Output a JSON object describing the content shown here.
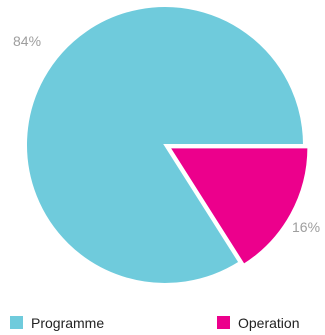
{
  "chart_data": {
    "type": "pie",
    "title": "",
    "slices": [
      {
        "label": "Programme",
        "value": 84,
        "display": "84%",
        "color": "#6fcbdc"
      },
      {
        "label": "Operation",
        "value": 16,
        "display": "16%",
        "color": "#ec008c"
      }
    ],
    "legend": {
      "placement": "bottom",
      "items": [
        {
          "label": "Programme",
          "color": "#6fcbdc"
        },
        {
          "label": "Operation",
          "color": "#ec008c"
        }
      ]
    }
  }
}
